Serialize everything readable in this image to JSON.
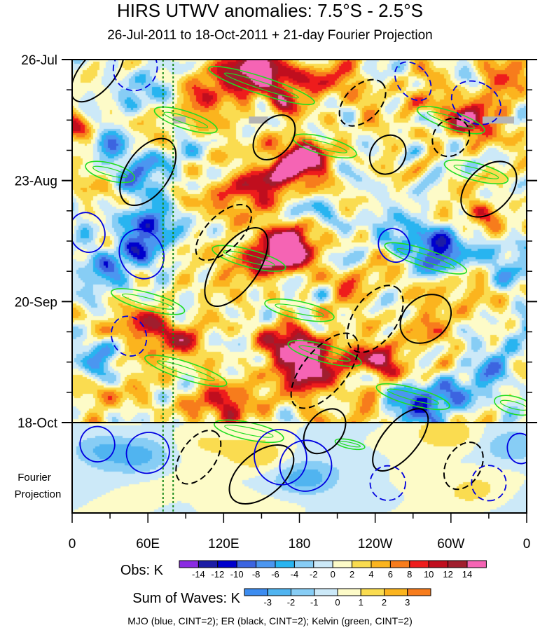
{
  "chart_data": {
    "type": "heatmap",
    "title": "HIRS UTWV anomalies: 7.5°S - 2.5°S",
    "subtitle": "26-Jul-2011 to 18-Oct-2011 + 21-day Fourier Projection",
    "x_ticks": [
      {
        "lon": 0,
        "label": "0"
      },
      {
        "lon": 60,
        "label": "60E"
      },
      {
        "lon": 120,
        "label": "120E"
      },
      {
        "lon": 180,
        "label": "180"
      },
      {
        "lon": 240,
        "label": "120W"
      },
      {
        "lon": 300,
        "label": "60W"
      },
      {
        "lon": 360,
        "label": "0"
      }
    ],
    "xlim": [
      0,
      360
    ],
    "y_ticks": [
      {
        "day": 0,
        "label": "26-Jul"
      },
      {
        "day": 28,
        "label": "23-Aug"
      },
      {
        "day": 56,
        "label": "20-Sep"
      },
      {
        "day": 84,
        "label": "18-Oct"
      }
    ],
    "ylim_days": [
      0,
      105
    ],
    "observation_end_day": 84,
    "projection_label_line1": "Fourier",
    "projection_label_line2": "Projection",
    "reference_longitudes": [
      72,
      80
    ],
    "obs_colorbar": {
      "label": "Obs: K",
      "levels": [
        "-14",
        "-12",
        "-10",
        "-8",
        "-6",
        "-4",
        "-2",
        "0",
        "2",
        "4",
        "6",
        "8",
        "10",
        "12",
        "14"
      ],
      "colors": [
        "#8a2be2",
        "#1c1ca5",
        "#0000cd",
        "#3c64e0",
        "#4b96f0",
        "#28b4f0",
        "#87cdf5",
        "#cce9f8",
        "#fdfbc8",
        "#fadc50",
        "#fbb41e",
        "#f77c1c",
        "#ee1c1c",
        "#c00e1e",
        "#a01e2e",
        "#f564b4"
      ]
    },
    "waves_colorbar": {
      "label": "Sum of Waves: K",
      "levels": [
        "-3",
        "-2",
        "-1",
        "0",
        "1",
        "2",
        "3"
      ],
      "colors": [
        "#3c8cf0",
        "#50b4f0",
        "#87cdf5",
        "#cce9f8",
        "#fdfbc8",
        "#fadc50",
        "#fbb41e",
        "#f77c1c"
      ]
    },
    "legend": "MJO (blue, CINT=2); ER (black, CINT=2); Kelvin (green, CINT=2)",
    "series": [
      {
        "name": "MJO",
        "color": "#0000e0",
        "contour_interval": 2
      },
      {
        "name": "ER",
        "color": "#000000",
        "contour_interval": 2
      },
      {
        "name": "Kelvin",
        "color": "#22dd22",
        "contour_interval": 2
      }
    ],
    "anomaly_features": [
      {
        "lon": 150,
        "day": 2,
        "value": 14
      },
      {
        "lon": 130,
        "day": 5,
        "value": 10
      },
      {
        "lon": 100,
        "day": 12,
        "value": 6
      },
      {
        "lon": 175,
        "day": 8,
        "value": 8
      },
      {
        "lon": 210,
        "day": 4,
        "value": 6
      },
      {
        "lon": 5,
        "day": 16,
        "value": 7
      },
      {
        "lon": 30,
        "day": 20,
        "value": -6
      },
      {
        "lon": 45,
        "day": 8,
        "value": -5
      },
      {
        "lon": 270,
        "day": 10,
        "value": 5
      },
      {
        "lon": 320,
        "day": 14,
        "value": 12
      },
      {
        "lon": 340,
        "day": 4,
        "value": 6
      },
      {
        "lon": 170,
        "day": 25,
        "value": 14
      },
      {
        "lon": 190,
        "day": 22,
        "value": 8
      },
      {
        "lon": 150,
        "day": 30,
        "value": 7
      },
      {
        "lon": 120,
        "day": 32,
        "value": 6
      },
      {
        "lon": 65,
        "day": 26,
        "value": -7
      },
      {
        "lon": 60,
        "day": 38,
        "value": -10
      },
      {
        "lon": 50,
        "day": 44,
        "value": -8
      },
      {
        "lon": 200,
        "day": 36,
        "value": -4
      },
      {
        "lon": 260,
        "day": 40,
        "value": -5
      },
      {
        "lon": 290,
        "day": 44,
        "value": -12
      },
      {
        "lon": 330,
        "day": 36,
        "value": 5
      },
      {
        "lon": 345,
        "day": 46,
        "value": -6
      },
      {
        "lon": 165,
        "day": 45,
        "value": 14
      },
      {
        "lon": 175,
        "day": 42,
        "value": 10
      },
      {
        "lon": 130,
        "day": 48,
        "value": 6
      },
      {
        "lon": 20,
        "day": 50,
        "value": -6
      },
      {
        "lon": 230,
        "day": 52,
        "value": 5
      },
      {
        "lon": 310,
        "day": 55,
        "value": 4
      },
      {
        "lon": 60,
        "day": 62,
        "value": 10
      },
      {
        "lon": 90,
        "day": 66,
        "value": 6
      },
      {
        "lon": 170,
        "day": 65,
        "value": 10
      },
      {
        "lon": 185,
        "day": 72,
        "value": 13
      },
      {
        "lon": 200,
        "day": 68,
        "value": 8
      },
      {
        "lon": 245,
        "day": 70,
        "value": 10
      },
      {
        "lon": 280,
        "day": 62,
        "value": 5
      },
      {
        "lon": 265,
        "day": 80,
        "value": -10
      },
      {
        "lon": 300,
        "day": 78,
        "value": -8
      },
      {
        "lon": 330,
        "day": 72,
        "value": -4
      },
      {
        "lon": 20,
        "day": 70,
        "value": -5
      },
      {
        "lon": 110,
        "day": 80,
        "value": 8
      },
      {
        "lon": 150,
        "day": 78,
        "value": 6
      },
      {
        "lon": 230,
        "day": 82,
        "value": 6
      },
      {
        "lon": 355,
        "day": 64,
        "value": -5
      },
      {
        "lon": 40,
        "day": 76,
        "value": 4
      }
    ],
    "projection_features": [
      {
        "lon": 20,
        "day": 90,
        "value": -2
      },
      {
        "lon": 55,
        "day": 92,
        "value": -2
      },
      {
        "lon": 100,
        "day": 88,
        "value": 1
      },
      {
        "lon": 150,
        "day": 92,
        "value": 2
      },
      {
        "lon": 185,
        "day": 97,
        "value": -3
      },
      {
        "lon": 230,
        "day": 94,
        "value": -1
      },
      {
        "lon": 270,
        "day": 96,
        "value": 1
      },
      {
        "lon": 320,
        "day": 100,
        "value": 1
      },
      {
        "lon": 350,
        "day": 90,
        "value": -2
      },
      {
        "lon": 300,
        "day": 87,
        "value": 2
      },
      {
        "lon": 120,
        "day": 102,
        "value": 1
      }
    ],
    "missing_data_bars": [
      {
        "lon_start": 80,
        "lon_end": 90,
        "day": 14
      },
      {
        "lon_start": 140,
        "lon_end": 155,
        "day": 14
      },
      {
        "lon_start": 325,
        "lon_end": 350,
        "day": 14
      }
    ],
    "mjo_contours": [
      {
        "lon": 50,
        "day": 2,
        "rx": 18,
        "ry": 5,
        "angle": -55,
        "dashed": true
      },
      {
        "lon": 320,
        "day": 10,
        "rx": 16,
        "ry": 6,
        "angle": -60,
        "dashed": true
      },
      {
        "lon": 270,
        "day": 5,
        "rx": 12,
        "ry": 5,
        "angle": -40,
        "dashed": true
      },
      {
        "lon": 55,
        "day": 45,
        "rx": 20,
        "ry": 5,
        "angle": 65,
        "dashed": false
      },
      {
        "lon": 12,
        "day": 40,
        "rx": 16,
        "ry": 4,
        "angle": 70,
        "dashed": false
      },
      {
        "lon": 185,
        "day": 94,
        "rx": 20,
        "ry": 6,
        "angle": 65,
        "dashed": false
      },
      {
        "lon": 165,
        "day": 92,
        "rx": 22,
        "ry": 6,
        "angle": 70,
        "dashed": false
      },
      {
        "lon": 250,
        "day": 98,
        "rx": 14,
        "ry": 4,
        "angle": 0,
        "dashed": true
      },
      {
        "lon": 330,
        "day": 98,
        "rx": 14,
        "ry": 4,
        "angle": 75,
        "dashed": true
      },
      {
        "lon": 20,
        "day": 89,
        "rx": 14,
        "ry": 4,
        "angle": 70,
        "dashed": false
      },
      {
        "lon": 60,
        "day": 91,
        "rx": 16,
        "ry": 5,
        "angle": 70,
        "dashed": false
      },
      {
        "lon": 355,
        "day": 90,
        "rx": 12,
        "ry": 3,
        "angle": 80,
        "dashed": false
      },
      {
        "lon": 45,
        "day": 64,
        "rx": 16,
        "ry": 4,
        "angle": 70,
        "dashed": true
      },
      {
        "lon": 255,
        "day": 43,
        "rx": 12,
        "ry": 4,
        "angle": -30,
        "dashed": false
      }
    ],
    "er_contours": [
      {
        "lon": 20,
        "day": 3,
        "rx": 28,
        "ry": 4,
        "angle": -50,
        "dashed": false
      },
      {
        "lon": 60,
        "day": 26,
        "rx": 30,
        "ry": 5,
        "angle": -55,
        "dashed": false
      },
      {
        "lon": 130,
        "day": 48,
        "rx": 36,
        "ry": 5,
        "angle": -55,
        "dashed": false
      },
      {
        "lon": 160,
        "day": 18,
        "rx": 20,
        "ry": 4,
        "angle": -50,
        "dashed": false
      },
      {
        "lon": 250,
        "day": 22,
        "rx": 16,
        "ry": 4,
        "angle": -60,
        "dashed": false
      },
      {
        "lon": 280,
        "day": 60,
        "rx": 22,
        "ry": 5,
        "angle": -40,
        "dashed": false
      },
      {
        "lon": 200,
        "day": 72,
        "rx": 36,
        "ry": 5,
        "angle": -50,
        "dashed": true
      },
      {
        "lon": 240,
        "day": 60,
        "rx": 30,
        "ry": 5,
        "angle": -55,
        "dashed": true
      },
      {
        "lon": 120,
        "day": 40,
        "rx": 28,
        "ry": 4,
        "angle": -45,
        "dashed": true
      },
      {
        "lon": 230,
        "day": 10,
        "rx": 22,
        "ry": 4,
        "angle": -45,
        "dashed": true
      },
      {
        "lon": 330,
        "day": 30,
        "rx": 26,
        "ry": 5,
        "angle": -45,
        "dashed": false
      },
      {
        "lon": 300,
        "day": 18,
        "rx": 16,
        "ry": 4,
        "angle": -50,
        "dashed": true
      },
      {
        "lon": 150,
        "day": 96,
        "rx": 30,
        "ry": 5,
        "angle": -40,
        "dashed": false
      },
      {
        "lon": 260,
        "day": 88,
        "rx": 30,
        "ry": 4,
        "angle": -50,
        "dashed": false
      },
      {
        "lon": 310,
        "day": 94,
        "rx": 20,
        "ry": 4,
        "angle": -60,
        "dashed": true
      },
      {
        "lon": 100,
        "day": 92,
        "rx": 24,
        "ry": 4,
        "angle": -55,
        "dashed": true
      },
      {
        "lon": 200,
        "day": 86,
        "rx": 20,
        "ry": 4,
        "angle": -50,
        "dashed": false
      }
    ],
    "kelvin_contours": [
      {
        "lon": 150,
        "day": 6,
        "rx": 44,
        "ry": 2,
        "angle": 18
      },
      {
        "lon": 300,
        "day": 14,
        "rx": 28,
        "ry": 2,
        "angle": 18
      },
      {
        "lon": 90,
        "day": 14,
        "rx": 26,
        "ry": 2,
        "angle": 18
      },
      {
        "lon": 200,
        "day": 20,
        "rx": 26,
        "ry": 2,
        "angle": 15
      },
      {
        "lon": 320,
        "day": 26,
        "rx": 26,
        "ry": 2,
        "angle": 15
      },
      {
        "lon": 30,
        "day": 26,
        "rx": 20,
        "ry": 2,
        "angle": 15
      },
      {
        "lon": 140,
        "day": 46,
        "rx": 30,
        "ry": 2,
        "angle": 15
      },
      {
        "lon": 280,
        "day": 46,
        "rx": 34,
        "ry": 2,
        "angle": 18
      },
      {
        "lon": 60,
        "day": 56,
        "rx": 30,
        "ry": 2,
        "angle": 15
      },
      {
        "lon": 180,
        "day": 58,
        "rx": 28,
        "ry": 2,
        "angle": 12
      },
      {
        "lon": 90,
        "day": 72,
        "rx": 34,
        "ry": 2,
        "angle": 18
      },
      {
        "lon": 200,
        "day": 68,
        "rx": 30,
        "ry": 2,
        "angle": 15
      },
      {
        "lon": 270,
        "day": 78,
        "rx": 30,
        "ry": 2,
        "angle": 15
      },
      {
        "lon": 350,
        "day": 80,
        "rx": 16,
        "ry": 2,
        "angle": 15
      },
      {
        "lon": 140,
        "day": 86,
        "rx": 28,
        "ry": 2,
        "angle": 12
      },
      {
        "lon": 220,
        "day": 89,
        "rx": 12,
        "ry": 1,
        "angle": 12
      }
    ]
  }
}
